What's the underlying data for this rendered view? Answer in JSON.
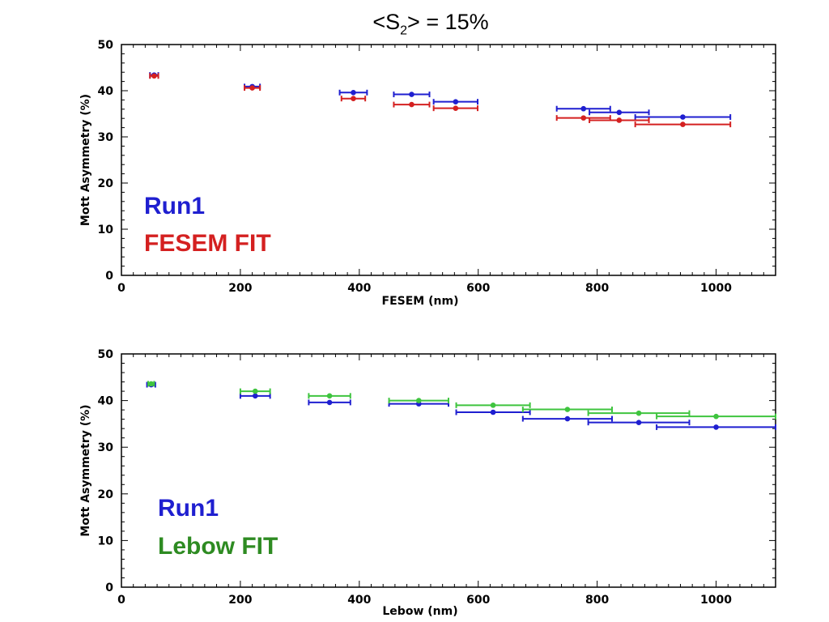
{
  "title": {
    "pre": "<S",
    "sub": "2",
    "post": "> = 15%"
  },
  "colors": {
    "run1": "#1f1fd0",
    "fesem_fit": "#d42020",
    "lebow_fit": "#3fc43f"
  },
  "legend": {
    "top": {
      "series_a": "Run1",
      "series_b": "FESEM FIT"
    },
    "bottom": {
      "series_a": "Run1",
      "series_b": "Lebow FIT"
    }
  },
  "chart_data": [
    {
      "type": "scatter",
      "xlabel": "FESEM (nm)",
      "ylabel": "Mott Asymmetry (%)",
      "xlim": [
        0,
        1100
      ],
      "ylim": [
        0,
        50
      ],
      "xticks": [
        0,
        200,
        400,
        600,
        800,
        1000
      ],
      "yticks": [
        0,
        10,
        20,
        30,
        40,
        50
      ],
      "series": [
        {
          "name": "Run1",
          "color": "#1f1fd0",
          "points": [
            {
              "x": 55,
              "y": 43.4,
              "xerr": 7
            },
            {
              "x": 220,
              "y": 40.9,
              "xerr": 13
            },
            {
              "x": 390,
              "y": 39.6,
              "xerr": 23
            },
            {
              "x": 488,
              "y": 39.2,
              "xerr": 30
            },
            {
              "x": 562,
              "y": 37.6,
              "xerr": 37
            },
            {
              "x": 777,
              "y": 36.1,
              "xerr": 45
            },
            {
              "x": 837,
              "y": 35.3,
              "xerr": 50
            },
            {
              "x": 944,
              "y": 34.3,
              "xerr": 80
            }
          ]
        },
        {
          "name": "FESEM FIT",
          "color": "#d42020",
          "points": [
            {
              "x": 55,
              "y": 43.2,
              "xerr": 7
            },
            {
              "x": 220,
              "y": 40.6,
              "xerr": 13
            },
            {
              "x": 390,
              "y": 38.3,
              "xerr": 20
            },
            {
              "x": 488,
              "y": 37.0,
              "xerr": 30
            },
            {
              "x": 562,
              "y": 36.2,
              "xerr": 37
            },
            {
              "x": 777,
              "y": 34.1,
              "xerr": 45
            },
            {
              "x": 837,
              "y": 33.6,
              "xerr": 50
            },
            {
              "x": 944,
              "y": 32.7,
              "xerr": 80
            }
          ]
        }
      ]
    },
    {
      "type": "scatter",
      "xlabel": "Lebow (nm)",
      "ylabel": "Mott Asymmetry (%)",
      "xlim": [
        0,
        1100
      ],
      "ylim": [
        0,
        50
      ],
      "xticks": [
        0,
        200,
        400,
        600,
        800,
        1000
      ],
      "yticks": [
        0,
        10,
        20,
        30,
        40,
        50
      ],
      "series": [
        {
          "name": "Run1",
          "color": "#1f1fd0",
          "points": [
            {
              "x": 50,
              "y": 43.4,
              "xerr": 7
            },
            {
              "x": 225,
              "y": 41.0,
              "xerr": 25
            },
            {
              "x": 350,
              "y": 39.6,
              "xerr": 35
            },
            {
              "x": 500,
              "y": 39.3,
              "xerr": 50
            },
            {
              "x": 625,
              "y": 37.5,
              "xerr": 62
            },
            {
              "x": 750,
              "y": 36.1,
              "xerr": 75
            },
            {
              "x": 870,
              "y": 35.3,
              "xerr": 85
            },
            {
              "x": 1000,
              "y": 34.3,
              "xerr": 100
            }
          ]
        },
        {
          "name": "Lebow FIT",
          "color": "#3fc43f",
          "points": [
            {
              "x": 50,
              "y": 43.6,
              "xerr": 5
            },
            {
              "x": 225,
              "y": 42.0,
              "xerr": 25
            },
            {
              "x": 350,
              "y": 41.0,
              "xerr": 35
            },
            {
              "x": 500,
              "y": 40.0,
              "xerr": 50
            },
            {
              "x": 625,
              "y": 39.0,
              "xerr": 62
            },
            {
              "x": 750,
              "y": 38.1,
              "xerr": 75
            },
            {
              "x": 870,
              "y": 37.3,
              "xerr": 85
            },
            {
              "x": 1000,
              "y": 36.6,
              "xerr": 100
            }
          ]
        }
      ]
    }
  ]
}
